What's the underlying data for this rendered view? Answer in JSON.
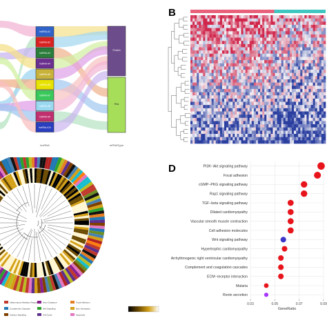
{
  "panel_labels": {
    "b": "B",
    "d": "D"
  },
  "sankey": {
    "left_axis_label": "lncRNA",
    "right_axis_label": "mRNAType",
    "nodes": [
      "lncRNA-A1",
      "lncRNA-A2",
      "lncRNA-A3",
      "lncRNA-A4",
      "lncRNA-A5",
      "lncRNA-A6",
      "lncRNA-A7",
      "lncRNA-A8",
      "lncRNA-A9",
      "lncRNA-A10"
    ],
    "node_colors": [
      "#2f63c9",
      "#d92323",
      "#2a7d3a",
      "#6b2f8f",
      "#c8b23a",
      "#e8e200",
      "#39c95a",
      "#9ad8f0",
      "#c0306f",
      "#2a3fbf"
    ],
    "types": [
      "Protein",
      "Risk"
    ],
    "type_colors": [
      "#6d4c8c",
      "#a6de5a"
    ]
  },
  "heatmap": {
    "rows": 40,
    "cols": 64,
    "colors": {
      "high": "#d1264b",
      "mid": "#f1f1f6",
      "low": "#2b3fa0"
    }
  },
  "circular": {
    "legend_items": [
      "Inflammatory Mediator Regulation",
      "Axon Guidance",
      "Focal Adhesion",
      "Complement Cascade",
      "Wnt Signaling",
      "Ecm Interaction",
      "Calcium Signaling",
      "Cell Cycle",
      "Apoptosis"
    ],
    "legend_colors": [
      "#c0392b",
      "#8a1f8f",
      "#e67e22",
      "#1f77b4",
      "#2ca02c",
      "#d4a017",
      "#7f3f00",
      "#5d2e8c",
      "#e377c2"
    ],
    "colorbar": [
      "#000000",
      "#6b4a00",
      "#d4a017",
      "#ffffff"
    ]
  },
  "chart_data": {
    "type": "scatter",
    "title": "",
    "xlabel": "GeneRatio",
    "ylabel": "",
    "xlim": [
      0.03,
      0.09
    ],
    "xticks": [
      "0.03",
      "0.05",
      "0.07",
      "0.09"
    ],
    "tick_values": [
      0.03,
      0.05,
      0.07,
      0.09
    ],
    "categories": [
      "PI3K−Akt signaling pathway",
      "Focal adhesion",
      "cGMP−PKG signaling pathway",
      "Rap1 signaling pathway",
      "TGF−beta signaling pathway",
      "Dilated cardiomyopathy",
      "Vascular smooth muscle contraction",
      "Cell adhesion molecules",
      "Wnt signaling pathway",
      "Hypertrophic cardiomyopathy",
      "Arrhythmogenic right ventricular cardiomyopathy",
      "Complement and coagulation cascades",
      "ECM−receptor interaction",
      "Malaria",
      "Renin secretion"
    ],
    "x": [
      0.088,
      0.085,
      0.074,
      0.074,
      0.063,
      0.063,
      0.063,
      0.063,
      0.057,
      0.058,
      0.055,
      0.055,
      0.055,
      0.043,
      0.043
    ],
    "count": [
      12,
      11,
      10,
      10,
      9,
      9,
      9,
      9,
      8,
      8,
      8,
      8,
      8,
      6,
      5
    ],
    "p_adjust_color": [
      "#e8141c",
      "#e8141c",
      "#e8141c",
      "#e8141c",
      "#e8141c",
      "#e8141c",
      "#e8141c",
      "#e8141c",
      "#3d35c8",
      "#e8141c",
      "#e8141c",
      "#e8141c",
      "#e8141c",
      "#e8141c",
      "#a536ff"
    ],
    "grid": true,
    "background": "#ffffff",
    "grid_color": "#e8e8e8"
  }
}
